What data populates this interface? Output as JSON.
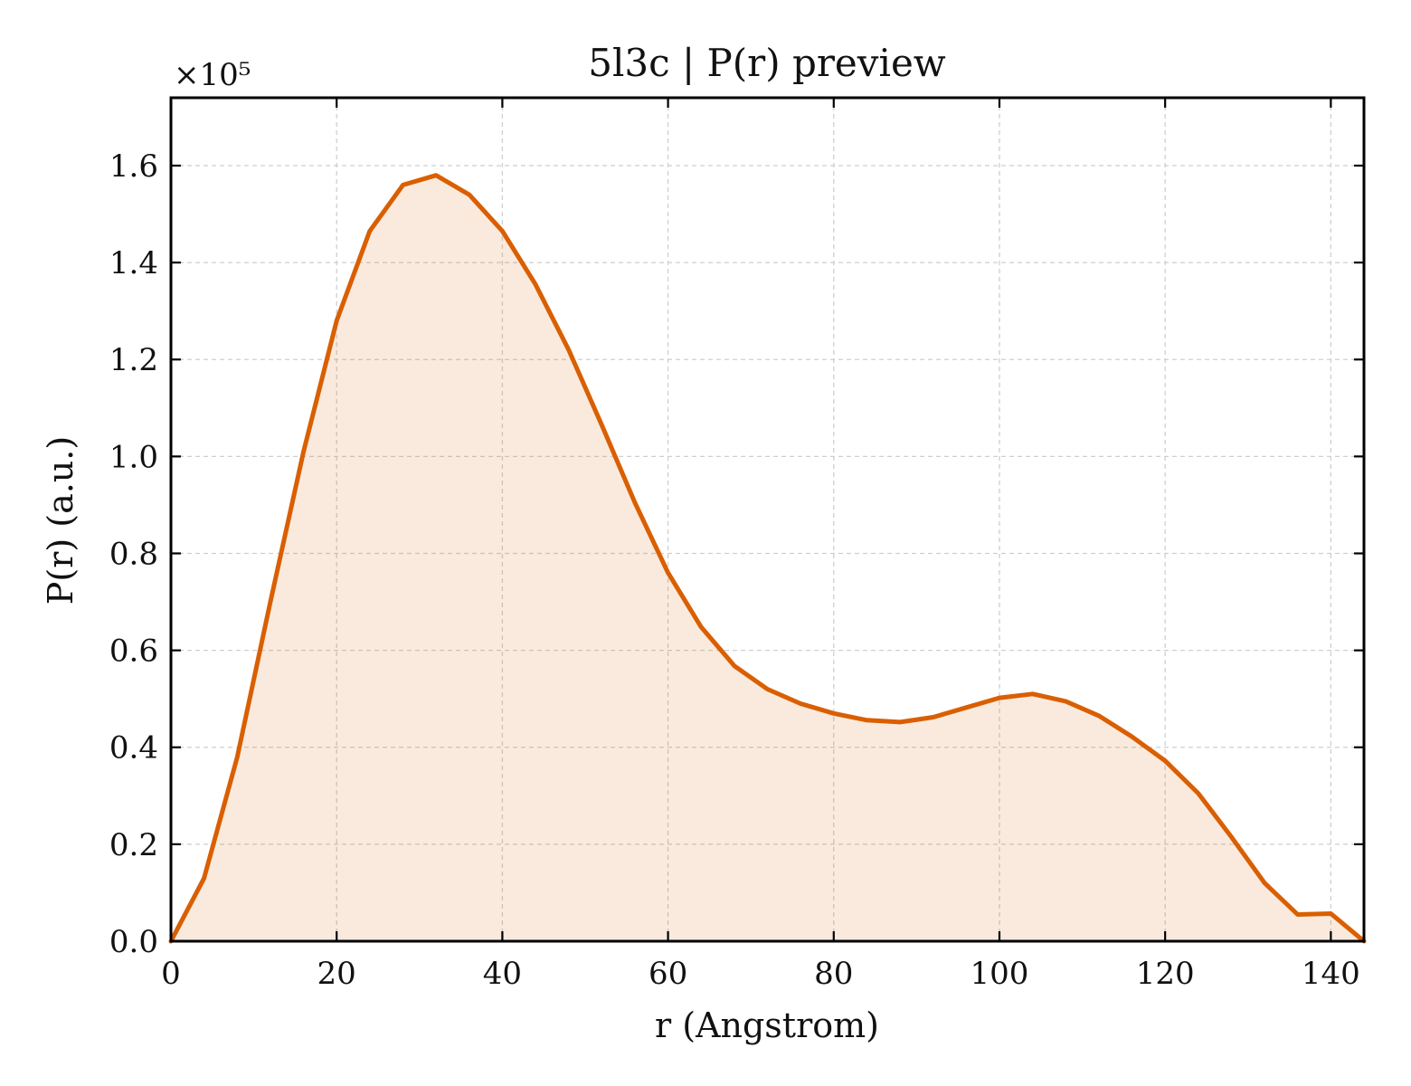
{
  "chart_data": {
    "type": "area",
    "title": "5l3c | P(r) preview",
    "xlabel": "r (Angstrom)",
    "ylabel": "P(r) (a.u.)",
    "y_multiplier_label": "×10⁵",
    "xlim": [
      0,
      144
    ],
    "ylim": [
      0,
      1.74
    ],
    "x_ticks": [
      0,
      20,
      40,
      60,
      80,
      100,
      120,
      140
    ],
    "x_tick_labels": [
      "0",
      "20",
      "40",
      "60",
      "80",
      "100",
      "120",
      "140"
    ],
    "y_ticks": [
      0.0,
      0.2,
      0.4,
      0.6,
      0.8,
      1.0,
      1.2,
      1.4,
      1.6
    ],
    "y_tick_labels": [
      "0.0",
      "0.2",
      "0.4",
      "0.6",
      "0.8",
      "1.0",
      "1.2",
      "1.4",
      "1.6"
    ],
    "grid": true,
    "series": [
      {
        "x": [
          0,
          4,
          8,
          12,
          16,
          20,
          24,
          28,
          32,
          36,
          40,
          44,
          48,
          52,
          56,
          60,
          64,
          68,
          72,
          76,
          80,
          84,
          88,
          92,
          96,
          100,
          104,
          108,
          112,
          116,
          120,
          124,
          128,
          132,
          136,
          140,
          144
        ],
        "y": [
          0.0,
          0.13,
          0.38,
          0.7,
          1.01,
          1.28,
          1.465,
          1.56,
          1.58,
          1.54,
          1.465,
          1.355,
          1.22,
          1.065,
          0.905,
          0.76,
          0.648,
          0.568,
          0.52,
          0.49,
          0.47,
          0.456,
          0.452,
          0.462,
          0.482,
          0.502,
          0.51,
          0.495,
          0.465,
          0.422,
          0.372,
          0.305,
          0.215,
          0.12,
          0.055,
          0.057,
          0.0
        ],
        "color": "#d95f02",
        "fill_color": "#d95f02",
        "fill_opacity": 0.13
      }
    ]
  }
}
